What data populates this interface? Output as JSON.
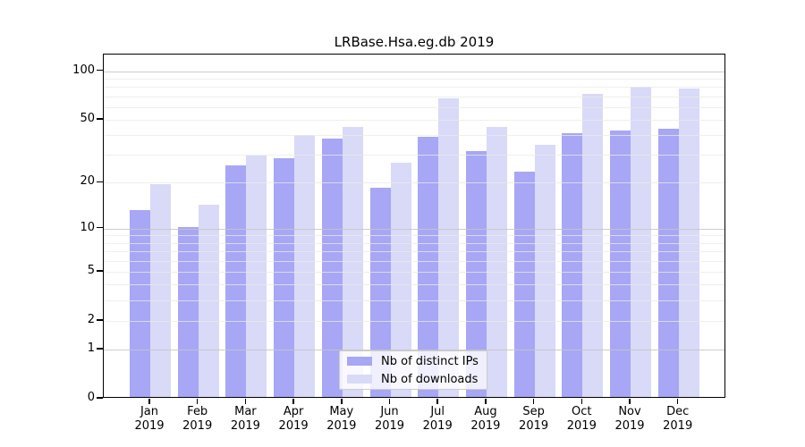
{
  "chart_data": {
    "type": "bar",
    "title": "LRBase.Hsa.eg.db 2019",
    "categories": [
      "Jan 2019",
      "Feb 2019",
      "Mar 2019",
      "Apr 2019",
      "May 2019",
      "Jun 2019",
      "Jul 2019",
      "Aug 2019",
      "Sep 2019",
      "Oct 2019",
      "Nov 2019",
      "Dec 2019"
    ],
    "series": [
      {
        "name": "Nb of distinct IPs",
        "color": "#a7a7f5",
        "values": [
          13,
          10,
          25,
          28,
          37,
          18,
          38,
          31,
          23,
          40,
          42,
          43
        ]
      },
      {
        "name": "Nb of downloads",
        "color": "#d9d9f8",
        "values": [
          19,
          14,
          29,
          39,
          44,
          26,
          66,
          44,
          34,
          71,
          78,
          76
        ]
      }
    ],
    "xlabel": "",
    "ylabel": "",
    "yscale": "log1p",
    "ylim": [
      0,
      127
    ],
    "ytick_labels": [
      "100",
      "50",
      "20",
      "10",
      "5",
      "2",
      "1",
      "0"
    ],
    "ytick_values": [
      100,
      50,
      20,
      10,
      5,
      2,
      1,
      0
    ],
    "grid_major_values": [
      1,
      10,
      100
    ],
    "grid_minor_values": [
      2,
      3,
      4,
      5,
      6,
      7,
      8,
      9,
      20,
      30,
      40,
      50,
      60,
      70,
      80,
      90
    ],
    "legend_position": "bottom-center-inside",
    "colors": {
      "bar_distinct_ips": "#a7a7f5",
      "bar_downloads": "#d9d9f8",
      "grid_major": "#c4c4c4",
      "grid_minor": "#eaeaea",
      "axis": "#000000",
      "legend_border": "#cccccc"
    }
  }
}
